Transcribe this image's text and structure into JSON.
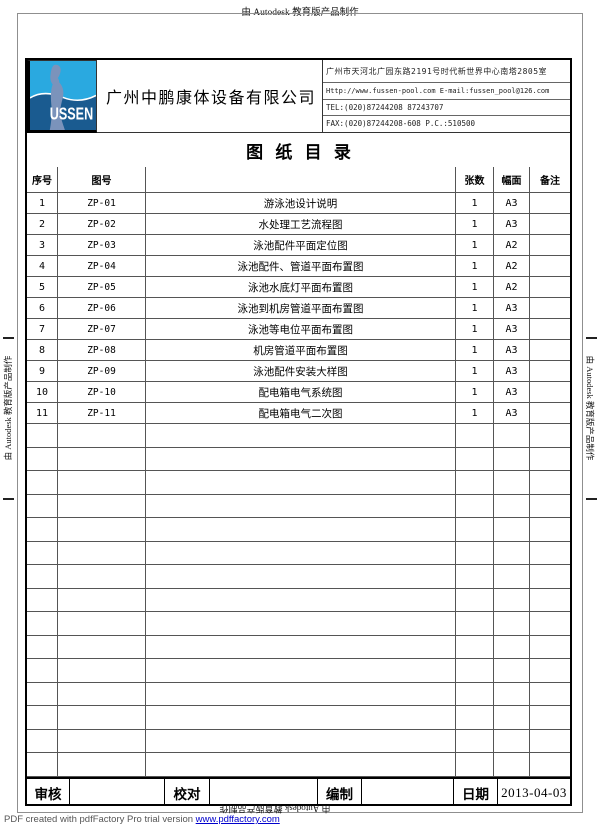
{
  "watermarks": {
    "top": "由 Autodesk 教育版产品制作",
    "left": "由 Autodesk 教育版产品制作",
    "right": "由 Autodesk 教育版产品制作",
    "bottom": "由 Autodesk 教育版产品制作"
  },
  "header": {
    "logo_text": "USSEN",
    "company_name": "广州中鹏康体设备有限公司",
    "contact": {
      "address": "广州市天河北广园东路2191号时代新世界中心南塔2805室",
      "web_email": "Http://www.fussen-pool.com  E-mail:fussen_pool@126.com",
      "tel": "TEL:(020)87244208 87243707",
      "fax_pc": "FAX:(020)87244208-608  P.C.:510500"
    }
  },
  "title": "图 纸 目 录",
  "table": {
    "headers": {
      "no": "序号",
      "code": "图号",
      "name": "",
      "sheets": "张数",
      "size": "幅面",
      "remarks": "备注"
    },
    "rows": [
      {
        "no": "1",
        "code": "ZP-01",
        "name": "游泳池设计说明",
        "sheets": "1",
        "size": "A3",
        "remarks": ""
      },
      {
        "no": "2",
        "code": "ZP-02",
        "name": "水处理工艺流程图",
        "sheets": "1",
        "size": "A3",
        "remarks": ""
      },
      {
        "no": "3",
        "code": "ZP-03",
        "name": "泳池配件平面定位图",
        "sheets": "1",
        "size": "A2",
        "remarks": ""
      },
      {
        "no": "4",
        "code": "ZP-04",
        "name": "泳池配件、管道平面布置图",
        "sheets": "1",
        "size": "A2",
        "remarks": ""
      },
      {
        "no": "5",
        "code": "ZP-05",
        "name": "泳池水底灯平面布置图",
        "sheets": "1",
        "size": "A2",
        "remarks": ""
      },
      {
        "no": "6",
        "code": "ZP-06",
        "name": "泳池到机房管道平面布置图",
        "sheets": "1",
        "size": "A3",
        "remarks": ""
      },
      {
        "no": "7",
        "code": "ZP-07",
        "name": "泳池等电位平面布置图",
        "sheets": "1",
        "size": "A3",
        "remarks": ""
      },
      {
        "no": "8",
        "code": "ZP-08",
        "name": "机房管道平面布置图",
        "sheets": "1",
        "size": "A3",
        "remarks": ""
      },
      {
        "no": "9",
        "code": "ZP-09",
        "name": "泳池配件安装大样图",
        "sheets": "1",
        "size": "A3",
        "remarks": ""
      },
      {
        "no": "10",
        "code": "ZP-10",
        "name": "配电箱电气系统图",
        "sheets": "1",
        "size": "A3",
        "remarks": ""
      },
      {
        "no": "11",
        "code": "ZP-11",
        "name": "配电箱电气二次图",
        "sheets": "1",
        "size": "A3",
        "remarks": ""
      }
    ],
    "empty_row_count": 15
  },
  "signature": {
    "review_label": "审核",
    "review_value": "",
    "proof_label": "校对",
    "proof_value": "",
    "compile_label": "编制",
    "compile_value": "",
    "date_label": "日期",
    "date_value": "2013-04-03"
  },
  "pdf_footer": {
    "text": "PDF created with pdfFactory Pro trial version ",
    "link": "www.pdffactory.com"
  },
  "colors": {
    "logo_top": "#2aa9e0",
    "logo_bottom": "#1a5b90",
    "logo_figure": "#7b93bb",
    "link_blue": "#0000cc"
  }
}
